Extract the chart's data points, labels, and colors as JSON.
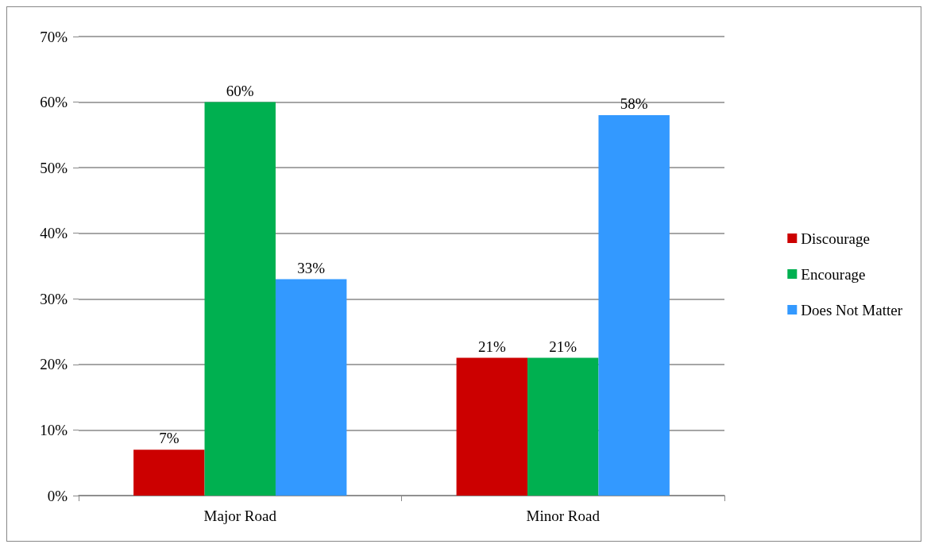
{
  "chart_data": {
    "type": "bar",
    "categories": [
      "Major Road",
      "Minor Road"
    ],
    "series": [
      {
        "name": "Discourage",
        "color": "#cc0000",
        "values": [
          7,
          21
        ],
        "value_labels": [
          "7%",
          "21%"
        ]
      },
      {
        "name": "Encourage",
        "color": "#00b050",
        "values": [
          60,
          21
        ],
        "value_labels": [
          "60%",
          "21%"
        ]
      },
      {
        "name": "Does Not Matter",
        "color": "#3399ff",
        "values": [
          33,
          58
        ],
        "value_labels": [
          "33%",
          "58%"
        ]
      }
    ],
    "ylim": [
      0,
      70
    ],
    "yticks": [
      {
        "value": 0,
        "label": "0%"
      },
      {
        "value": 10,
        "label": "10%"
      },
      {
        "value": 20,
        "label": "20%"
      },
      {
        "value": 30,
        "label": "30%"
      },
      {
        "value": 40,
        "label": "40%"
      },
      {
        "value": 50,
        "label": "50%"
      },
      {
        "value": 60,
        "label": "60%"
      },
      {
        "value": 70,
        "label": "70%"
      }
    ],
    "grid": "y",
    "legend": "right"
  }
}
